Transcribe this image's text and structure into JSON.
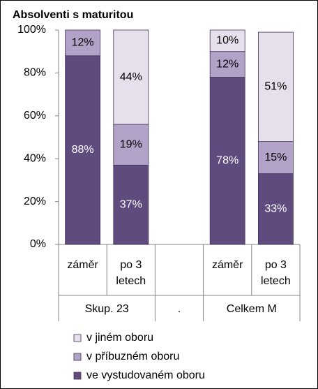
{
  "chart_data": {
    "type": "stacked_bar",
    "title": "Absolventi s maturitou",
    "categories": [
      "záměr",
      "po 3 letech",
      null,
      "záměr",
      "po 3 letech"
    ],
    "category_groups": [
      "Skup. 23",
      "Skup. 23",
      ".",
      "Celkem M",
      "Celkem M"
    ],
    "series": [
      {
        "name": "ve vystudovaném oboru",
        "color": "#5f4b7e",
        "label_color": "#ffffff",
        "values": [
          88,
          37,
          null,
          78,
          33
        ],
        "value_labels": [
          "88%",
          "37%",
          null,
          "78%",
          "33%"
        ]
      },
      {
        "name": "v příbuzném oboru",
        "color": "#b3a2c7",
        "label_color": "#000000",
        "values": [
          12,
          19,
          null,
          12,
          15
        ],
        "value_labels": [
          "12%",
          "19%",
          null,
          "12%",
          "15%"
        ]
      },
      {
        "name": "v jiném oboru",
        "color": "#e6e0ec",
        "label_color": "#000000",
        "values": [
          null,
          44,
          null,
          10,
          51
        ],
        "value_labels": [
          null,
          "44%",
          null,
          "10%",
          "51%"
        ]
      }
    ],
    "ylim": [
      0,
      100
    ],
    "yticks": [
      {
        "value": 0,
        "label": "0%"
      },
      {
        "value": 20,
        "label": "20%"
      },
      {
        "value": 40,
        "label": "40%"
      },
      {
        "value": 60,
        "label": "60%"
      },
      {
        "value": 80,
        "label": "80%"
      },
      {
        "value": 100,
        "label": "100%"
      }
    ],
    "legend": "bottom-left"
  }
}
